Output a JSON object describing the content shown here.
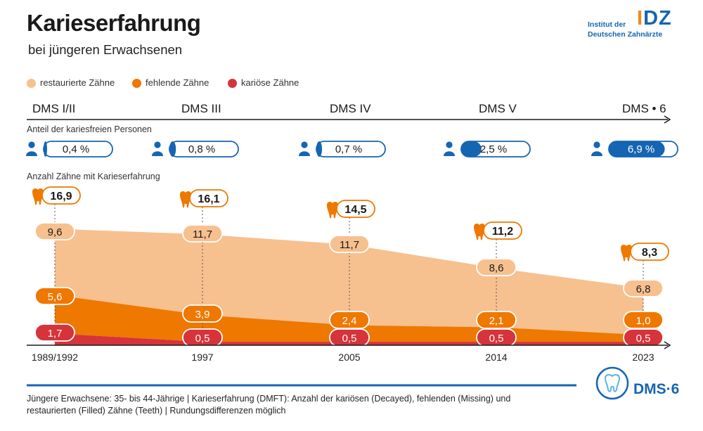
{
  "header": {
    "title": "Karieserfahrung",
    "subtitle": "bei jüngeren Erwachsenen"
  },
  "logo": {
    "line1": "Institut der",
    "line2": "Deutschen Zahnärzte",
    "mark_bar": "I",
    "mark_rest": "DZ"
  },
  "legend": [
    {
      "label": "restaurierte Zähne",
      "color": "#f7c08f"
    },
    {
      "label": "fehlende Zähne",
      "color": "#ee7800"
    },
    {
      "label": "kariöse Zähne",
      "color": "#d6333a"
    }
  ],
  "chart_data": {
    "type": "area",
    "title": "Karieserfahrung",
    "subtitle": "bei jüngeren Erwachsenen",
    "studies": [
      "DMS I/II",
      "DMS III",
      "DMS IV",
      "DMS V",
      "DMS • 6"
    ],
    "categories": [
      "1989/1992",
      "1997",
      "2005",
      "2014",
      "2023"
    ],
    "caries_free_label": "Anteil der kariesfreien Personen",
    "caries_free_percent": [
      0.4,
      0.8,
      0.7,
      2.5,
      6.9
    ],
    "caries_free_text": [
      "0,4 %",
      "0,8 %",
      "0,7 %",
      "2,5 %",
      "6,9 %"
    ],
    "teeth_label": "Anzahl Zähne mit Karieserfahrung",
    "totals": [
      16.9,
      16.1,
      14.5,
      11.2,
      8.3
    ],
    "totals_text": [
      "16,9",
      "16,1",
      "14,5",
      "11,2",
      "8,3"
    ],
    "series": [
      {
        "name": "kariöse Zähne",
        "color": "#d6333a",
        "values": [
          1.7,
          0.5,
          0.5,
          0.5,
          0.5
        ],
        "labels": [
          "1,7",
          "0,5",
          "0,5",
          "0,5",
          "0,5"
        ]
      },
      {
        "name": "fehlende Zähne",
        "color": "#ee7800",
        "values": [
          5.6,
          3.9,
          2.4,
          2.1,
          1.0
        ],
        "labels": [
          "5,6",
          "3,9",
          "2,4",
          "2,1",
          "1,0"
        ]
      },
      {
        "name": "restaurierte Zähne",
        "color": "#f7c08f",
        "values": [
          9.6,
          11.7,
          11.7,
          8.6,
          6.8
        ],
        "labels": [
          "9,6",
          "11,7",
          "11,7",
          "8,6",
          "6,8"
        ]
      }
    ],
    "ylim": [
      0,
      17
    ]
  },
  "footer": {
    "note": "Jüngere Erwachsene: 35- bis 44-Jährige | Karieserfahrung (DMFT): Anzahl der kariösen (Decayed), fehlenden (Missing) und restaurierten (Filled) Zähne (Teeth) | Rundungsdifferenzen möglich"
  },
  "dms_logo": {
    "text": "DMS·6"
  },
  "colors": {
    "blue": "#1565b2",
    "dark": "#1a1a1a",
    "orange_total_border": "#ee7800"
  }
}
